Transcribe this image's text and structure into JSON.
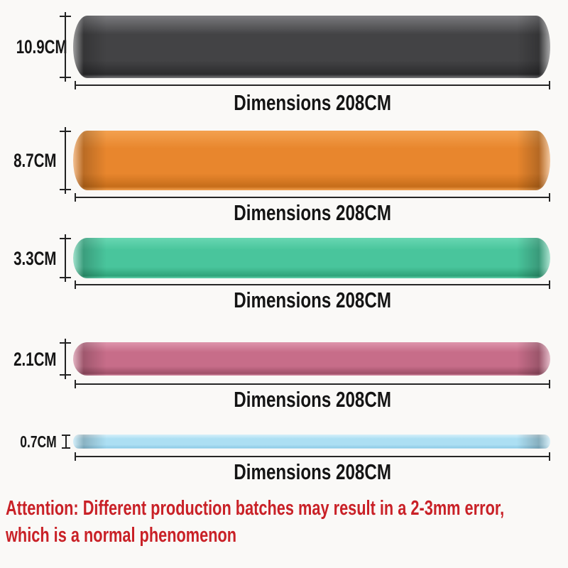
{
  "bands": [
    {
      "name": "black-band",
      "height_label": "10.9CM",
      "length_label": "Dimensions 208CM",
      "color": "#434345",
      "color_light": "#7a7a7d",
      "color_dark": "#2c2c2e"
    },
    {
      "name": "orange-band",
      "height_label": "8.7CM",
      "length_label": "Dimensions 208CM",
      "color": "#e8862d",
      "color_light": "#f3a14f",
      "color_dark": "#c66d1a"
    },
    {
      "name": "green-band",
      "height_label": "3.3CM",
      "length_label": "Dimensions 208CM",
      "color": "#49c59c",
      "color_light": "#68d7b2",
      "color_dark": "#2ea379"
    },
    {
      "name": "pink-band",
      "height_label": "2.1CM",
      "length_label": "Dimensions 208CM",
      "color": "#c76d89",
      "color_light": "#de95ac",
      "color_dark": "#9f5068"
    },
    {
      "name": "blue-band",
      "height_label": "0.7CM",
      "length_label": "Dimensions 208CM",
      "color": "#acdff3",
      "color_light": "#d6f0fa",
      "color_dark": "#90cce6"
    }
  ],
  "attention": {
    "line1": "Attention: Different production batches may result in a 2-3mm error,",
    "line2": "which is a normal phenomenon",
    "color": "#c92127"
  }
}
